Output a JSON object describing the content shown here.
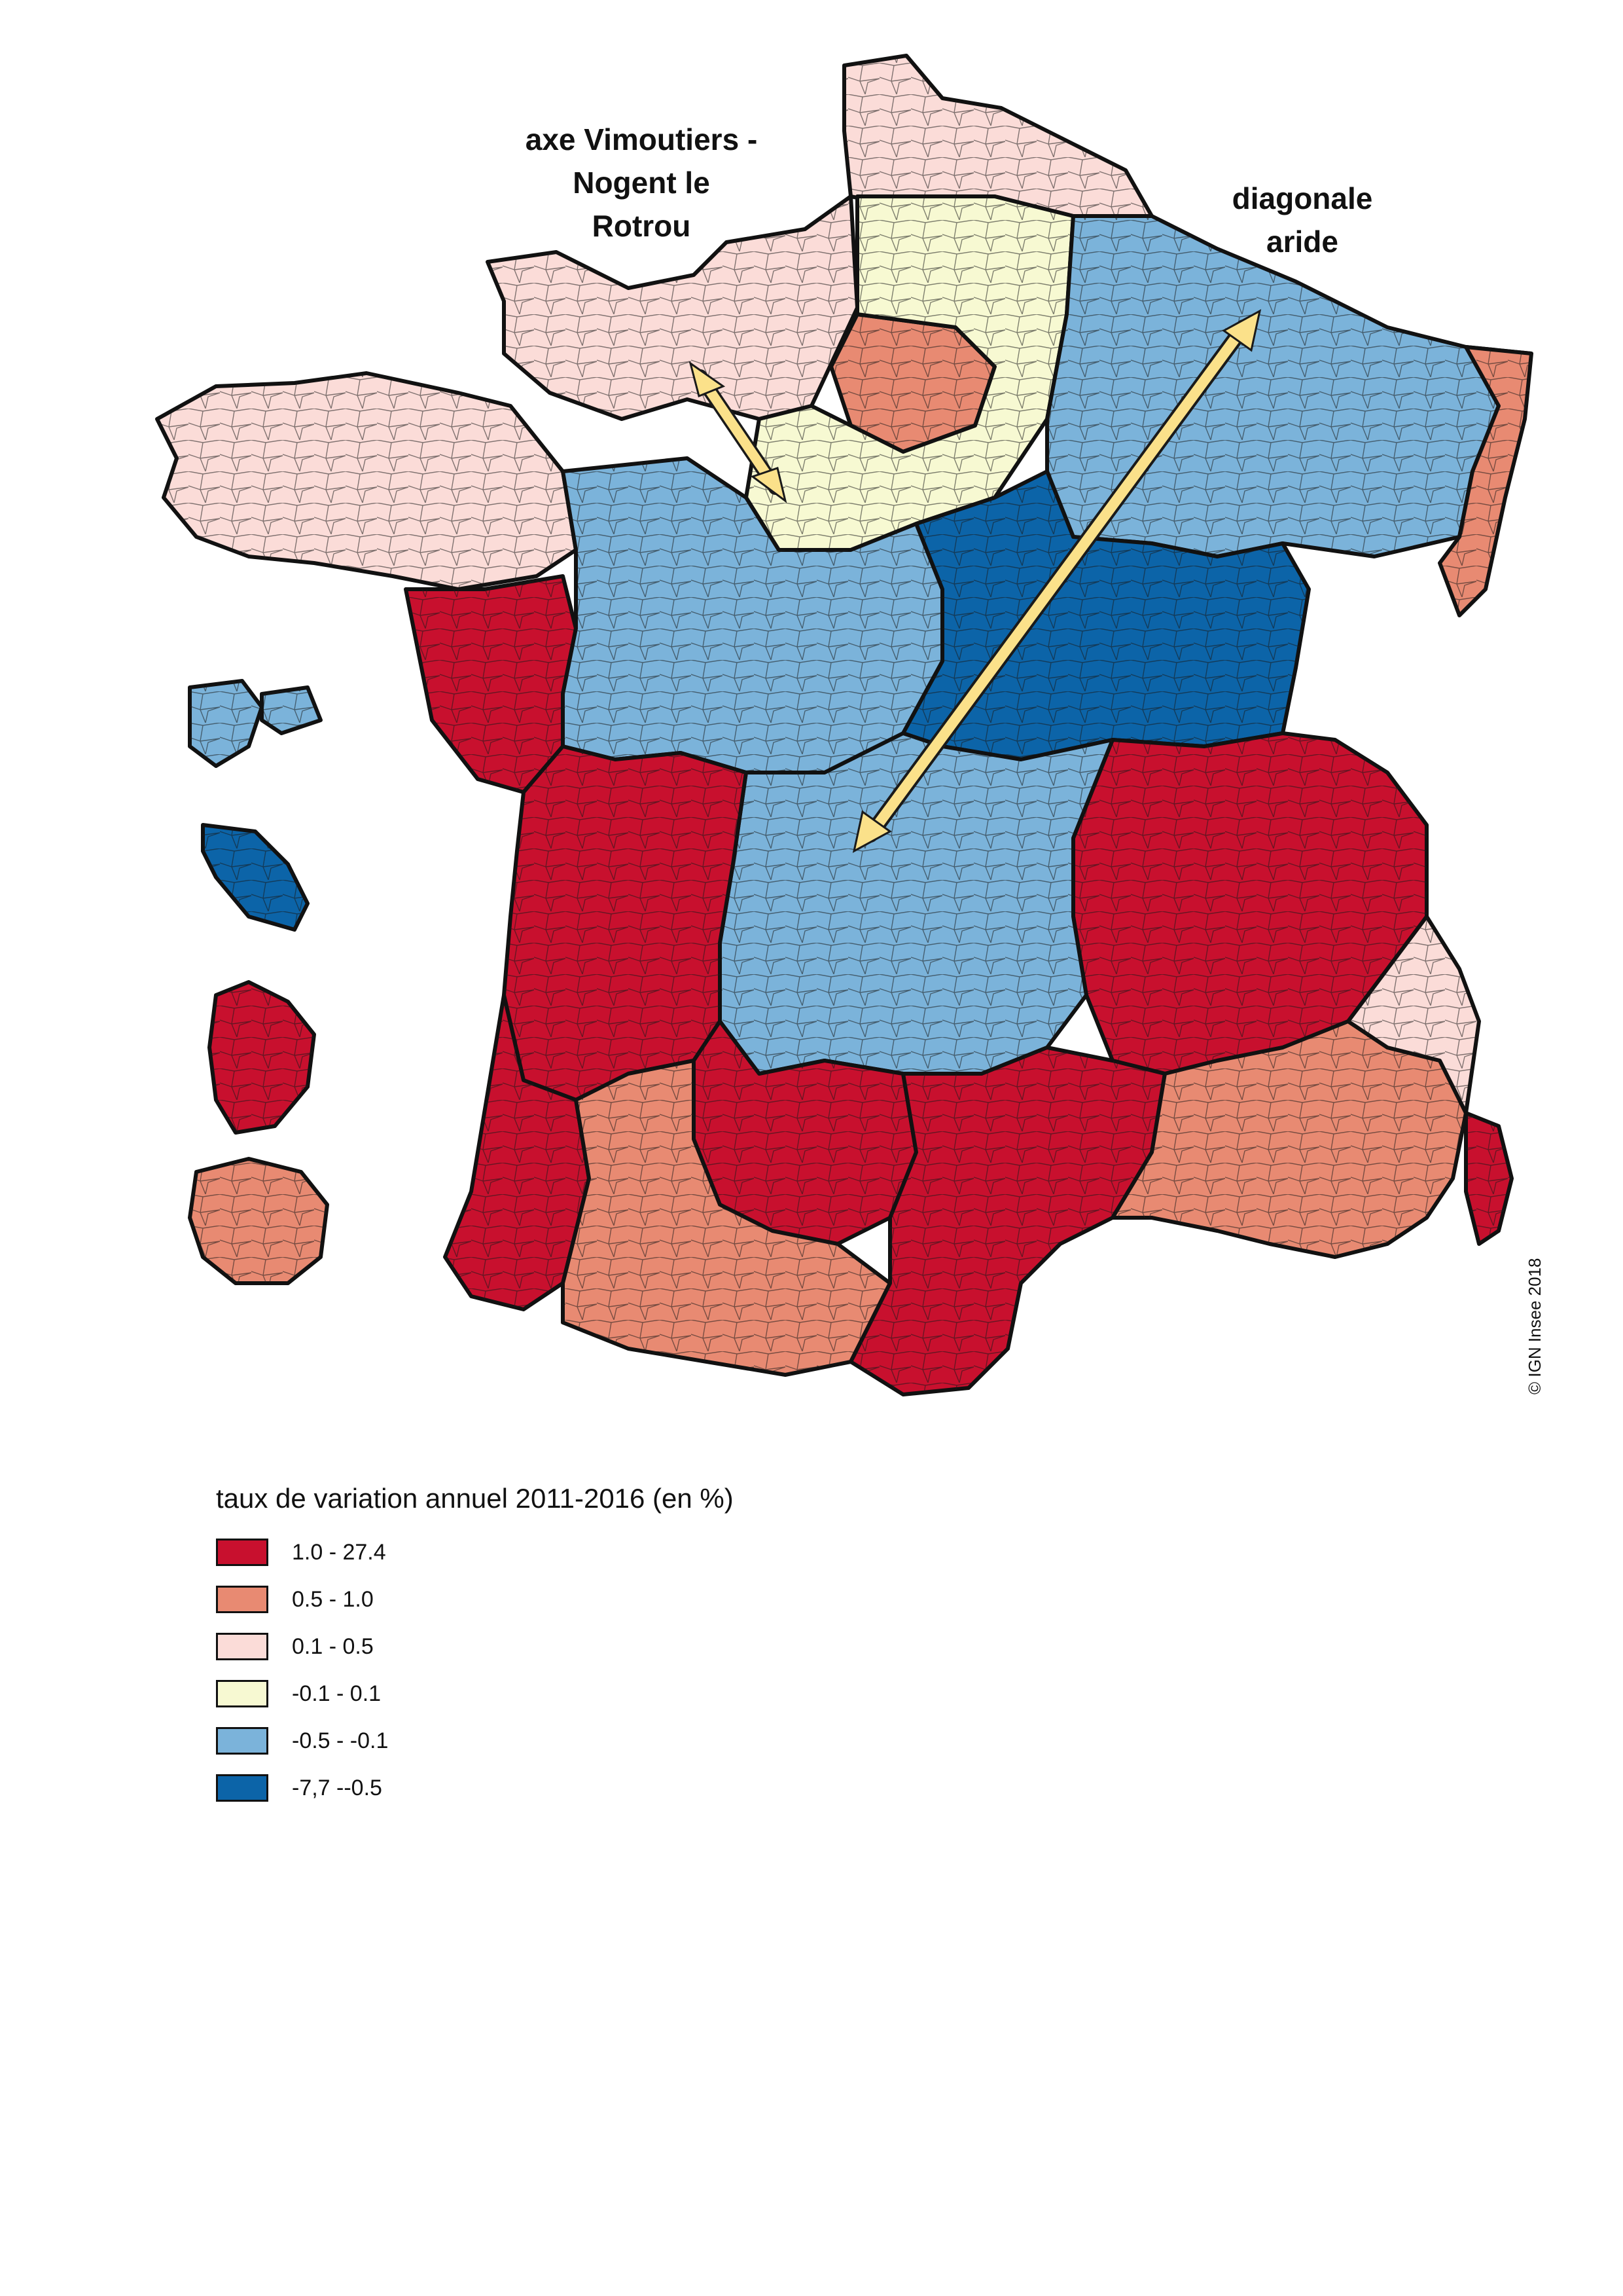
{
  "annotations": {
    "vimoutiers": [
      "axe Vimoutiers -",
      "Nogent le",
      "Rotrou"
    ],
    "diagonale": [
      "diagonale",
      "aride"
    ]
  },
  "copyright": "© IGN Insee 2018",
  "legend": {
    "title": "taux de variation annuel 2011-2016 (en %)",
    "classes": [
      {
        "label": "1.0 - 27.4",
        "color": "#c8102e"
      },
      {
        "label": "0.5 - 1.0",
        "color": "#e88a72"
      },
      {
        "label": "0.1 - 0.5",
        "color": "#fbdcd8"
      },
      {
        "label": "-0.1 - 0.1",
        "color": "#f7f9d2"
      },
      {
        "label": "-0.5 - -0.1",
        "color": "#7bb3da"
      },
      {
        "label": "-7,7 --0.5",
        "color": "#0c64a8"
      }
    ]
  },
  "regions": {
    "nord": 2,
    "bretagne": 2,
    "normandie": 2,
    "idf": 1,
    "grand_est": 4,
    "bassin_parisien": 3,
    "vendee": 0,
    "centre": 4,
    "bourgogne": 5,
    "alsace": 1,
    "rhone_alpes": 0,
    "massif_central": 4,
    "aquitaine": 0,
    "landes": 0,
    "midi": 1,
    "toulouse": 0,
    "languedoc": 0,
    "provence": 1,
    "alpes_sud": 2,
    "corse": 0,
    "guadeloupe": 4,
    "martinique": 5,
    "guyane": 0,
    "reunion": 1
  },
  "arrows": [
    {
      "name": "vimoutiers-arrow"
    },
    {
      "name": "diagonale-arrow"
    }
  ]
}
